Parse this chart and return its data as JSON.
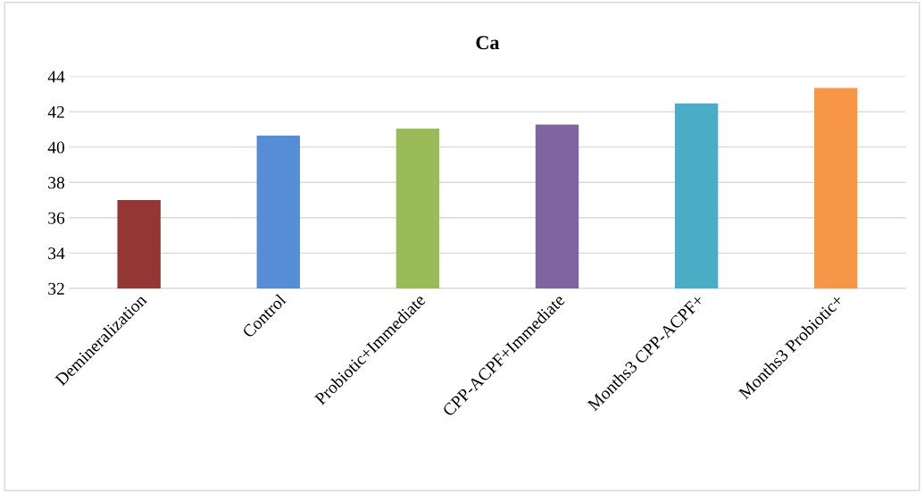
{
  "chart_data": {
    "type": "bar",
    "title": "Ca",
    "categories": [
      "Demineralization",
      "Control",
      "Probiotic+Immediate",
      "CPP-ACPF+Immediate",
      "Months3 CPP-ACPF+",
      "Months3 Probiotic+"
    ],
    "values": [
      37.0,
      40.65,
      41.05,
      41.27,
      42.47,
      43.35
    ],
    "colors": [
      "#943634",
      "#558ed5",
      "#9bbb59",
      "#8064a2",
      "#4bacc6",
      "#f79646"
    ],
    "ylim": [
      32,
      44
    ],
    "yticks": [
      32,
      34,
      36,
      38,
      40,
      42,
      44
    ],
    "grid": "y"
  }
}
